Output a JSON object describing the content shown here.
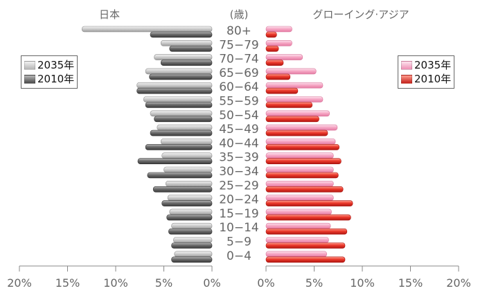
{
  "chart_data": {
    "type": "bar",
    "title_left": "日本",
    "title_center": "(歳)",
    "title_right": "グローイング·アジア",
    "categories": [
      "80+",
      "75−79",
      "70−74",
      "65−69",
      "60−64",
      "55−59",
      "50−54",
      "45−49",
      "40−44",
      "35−39",
      "30−34",
      "25−29",
      "20−24",
      "15−19",
      "10−14",
      "5−9",
      "0−4"
    ],
    "x_ticks_left": [
      "20%",
      "15%",
      "10%",
      "5%",
      "0%"
    ],
    "x_ticks_right": [
      "0%",
      "5%",
      "10%",
      "15%",
      "20%"
    ],
    "xlim": [
      0,
      20
    ],
    "panels": [
      {
        "name": "日本",
        "side": "left",
        "series": [
          {
            "name": "2035年",
            "values": [
              13.5,
              5.3,
              6.0,
              6.9,
              7.8,
              7.1,
              6.4,
              5.7,
              5.3,
              5.2,
              5.0,
              4.8,
              4.6,
              4.4,
              4.2,
              4.0,
              3.9
            ],
            "color": "#c4c4c4"
          },
          {
            "name": "2010年",
            "values": [
              6.4,
              4.4,
              5.3,
              6.5,
              7.8,
              6.9,
              6.0,
              6.4,
              6.9,
              7.7,
              6.7,
              6.1,
              5.2,
              4.7,
              4.5,
              4.2,
              4.2
            ],
            "color": "#6e6e6e"
          }
        ]
      },
      {
        "name": "グローイング·アジア",
        "side": "right",
        "series": [
          {
            "name": "2035年",
            "values": [
              2.7,
              2.7,
              3.8,
              5.2,
              5.9,
              5.9,
              6.6,
              7.4,
              7.2,
              7.0,
              7.0,
              7.0,
              7.0,
              6.8,
              6.7,
              6.5,
              6.3
            ],
            "color": "#f7a7c4"
          },
          {
            "name": "2010年",
            "values": [
              1.1,
              1.3,
              1.8,
              2.5,
              3.3,
              4.8,
              5.5,
              6.4,
              7.6,
              7.8,
              7.5,
              8.0,
              9.0,
              8.8,
              8.4,
              8.2,
              8.2
            ],
            "color": "#e8302e"
          }
        ]
      }
    ],
    "legend_left": [
      {
        "label": "2035年",
        "color": "#c4c4c4"
      },
      {
        "label": "2010年",
        "color": "#6e6e6e"
      }
    ],
    "legend_right": [
      {
        "label": "2035年",
        "color": "#f7a7c4"
      },
      {
        "label": "2010年",
        "color": "#e8302e"
      }
    ]
  }
}
